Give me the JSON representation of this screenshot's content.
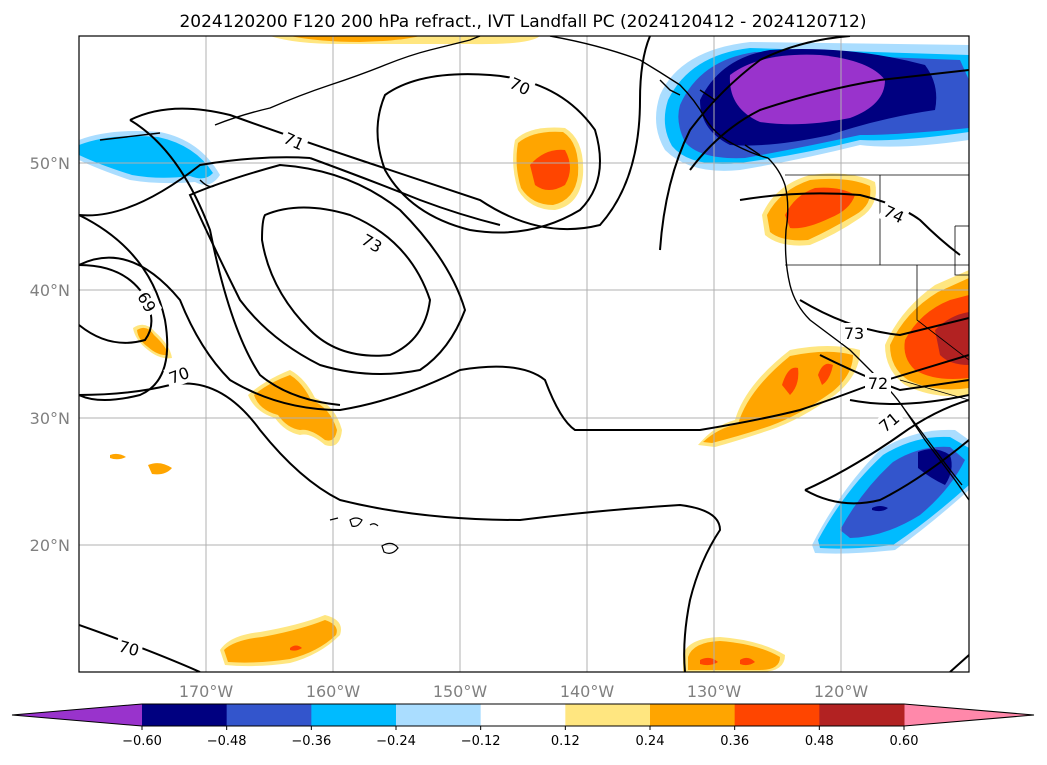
{
  "title": "2024120200 F120 200 hPa refract., IVT Landfall PC (2024120412 - 2024120712)",
  "lat_labels": [
    "50°N",
    "40°N",
    "30°N",
    "20°N"
  ],
  "lon_labels": [
    "170°W",
    "160°W",
    "150°W",
    "140°W",
    "130°W",
    "120°W"
  ],
  "colorbar": {
    "ticks": [
      "−0.60",
      "−0.48",
      "−0.36",
      "−0.24",
      "−0.12",
      "0.12",
      "0.24",
      "0.36",
      "0.48",
      "0.60"
    ],
    "colors": [
      "#9933cc",
      "#000080",
      "#3355cc",
      "#00bbff",
      "#aaddff",
      "#ffffff",
      "#ffe680",
      "#ffa500",
      "#ff4500",
      "#b22222",
      "#ff88aa"
    ]
  },
  "contour_labels": [
    "70",
    "71",
    "73",
    "74",
    "69",
    "70",
    "73",
    "72",
    "71",
    "70"
  ],
  "colors": {
    "purple": "#9933cc",
    "navy": "#000080",
    "blue": "#3355cc",
    "cyan": "#00bbff",
    "light_blue": "#aaddff",
    "light_yellow": "#ffe680",
    "orange": "#ffa500",
    "red_orange": "#ff4500",
    "dark_red": "#b22222",
    "gridline": "#b0b0b0"
  }
}
